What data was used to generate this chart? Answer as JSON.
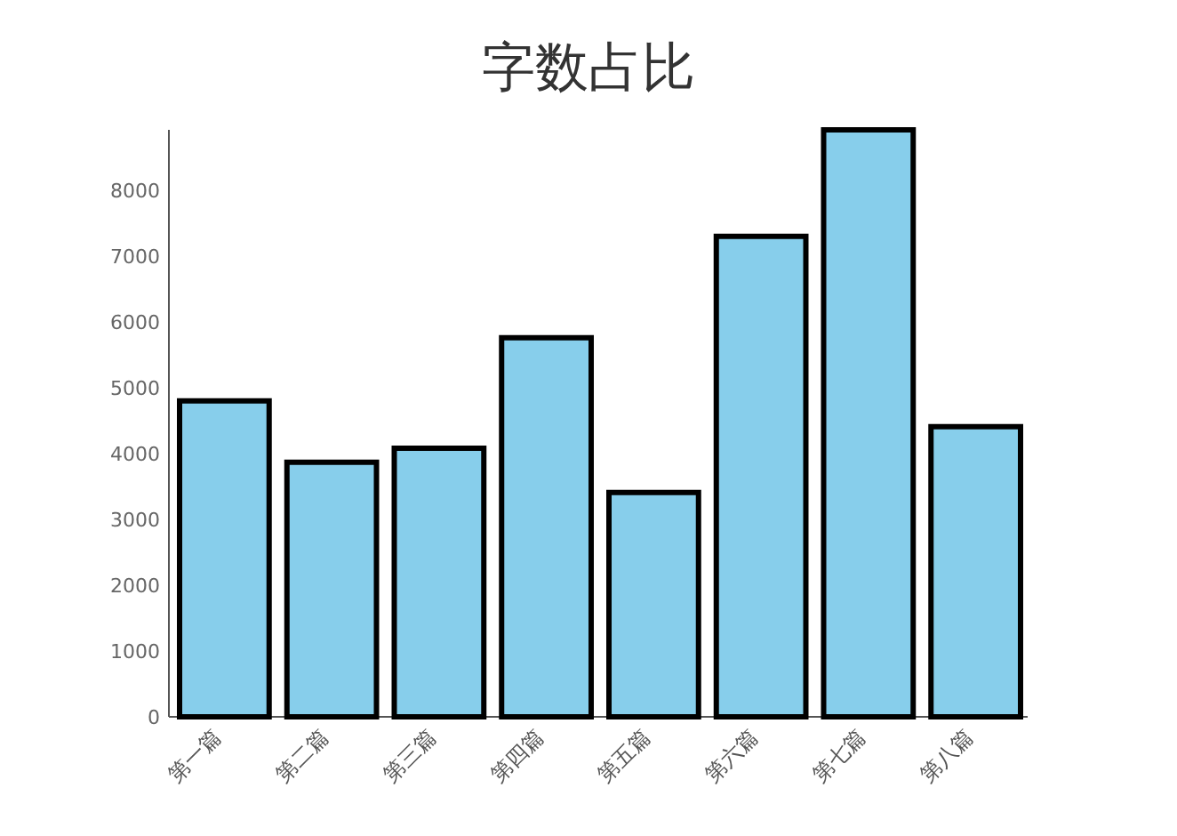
{
  "chart_data": {
    "type": "bar",
    "title": "字数占比",
    "categories": [
      "第一篇",
      "第二篇",
      "第三篇",
      "第四篇",
      "第五篇",
      "第六篇",
      "第七篇",
      "第八篇"
    ],
    "values": [
      4800,
      3870,
      4080,
      5760,
      3410,
      7300,
      8920,
      4410
    ],
    "color": "#87ceeb",
    "ylim": [
      0,
      8920
    ],
    "yticks": [
      0,
      1000,
      2000,
      3000,
      4000,
      5000,
      6000,
      7000,
      8000
    ],
    "grid": false
  }
}
